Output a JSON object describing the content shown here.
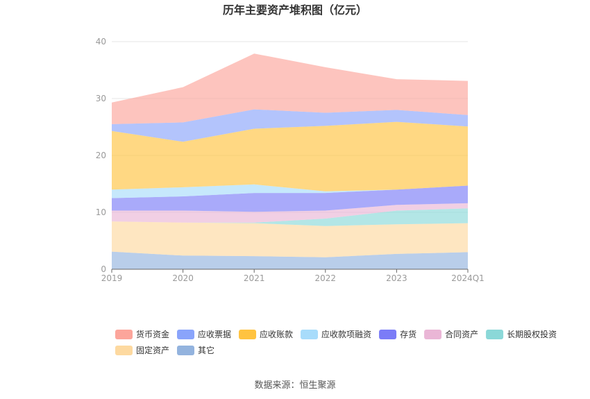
{
  "chart_data": {
    "type": "area",
    "stacked": true,
    "title": "历年主要资产堆积图（亿元）",
    "categories": [
      "2019",
      "2020",
      "2021",
      "2022",
      "2023",
      "2024Q1"
    ],
    "ylim": [
      0,
      40
    ],
    "yticks": [
      0,
      10,
      20,
      30,
      40
    ],
    "grid": true,
    "legend_position": "bottom",
    "series": [
      {
        "name": "其它",
        "color": "#93b3de",
        "values": [
          3.1,
          2.4,
          2.3,
          2.1,
          2.7,
          3.0
        ]
      },
      {
        "name": "固定资产",
        "color": "#fdd9a0",
        "values": [
          5.3,
          5.8,
          5.8,
          5.5,
          5.2,
          5.1
        ]
      },
      {
        "name": "长期股权投资",
        "color": "#8bd8d8",
        "values": [
          0.0,
          0.0,
          0.1,
          1.3,
          2.4,
          2.6
        ]
      },
      {
        "name": "合同资产",
        "color": "#eab6d6",
        "values": [
          1.9,
          2.1,
          1.9,
          1.4,
          1.0,
          0.9
        ]
      },
      {
        "name": "存货",
        "color": "#7b7cf7",
        "values": [
          2.2,
          2.5,
          3.3,
          3.1,
          2.7,
          3.1
        ]
      },
      {
        "name": "应收款项融资",
        "color": "#a8dcfb",
        "values": [
          1.5,
          1.6,
          1.5,
          0.3,
          0.0,
          0.0
        ]
      },
      {
        "name": "应收账款",
        "color": "#ffc340",
        "values": [
          10.3,
          8.0,
          9.8,
          11.5,
          11.9,
          10.4
        ]
      },
      {
        "name": "应收票据",
        "color": "#8aa4fb",
        "values": [
          1.2,
          3.4,
          3.4,
          2.3,
          2.1,
          2.0
        ]
      },
      {
        "name": "货币资金",
        "color": "#fca59b",
        "values": [
          3.8,
          6.2,
          9.8,
          8.0,
          5.4,
          6.0
        ]
      }
    ],
    "legend_order": [
      "货币资金",
      "应收票据",
      "应收账款",
      "应收款项融资",
      "存货",
      "合同资产",
      "长期股权投资",
      "固定资产",
      "其它"
    ]
  },
  "source": "数据来源：恒生聚源"
}
